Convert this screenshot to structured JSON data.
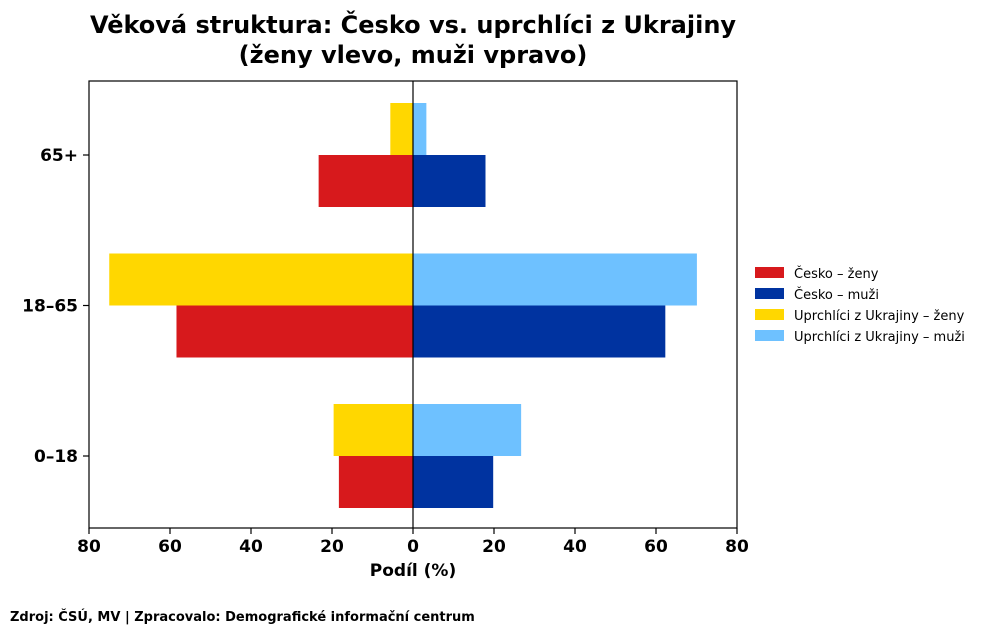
{
  "chart_data": {
    "type": "bar",
    "orientation": "horizontal",
    "title_line1": "Věková struktura: Česko vs. uprchlíci z Ukrajiny",
    "title_line2": "(ženy vlevo, muži vpravo)",
    "xlabel": "Podíl (%)",
    "ylabel": "",
    "categories": [
      "0–18",
      "18–65",
      "65+"
    ],
    "xlim": [
      -80,
      80
    ],
    "x_ticks": [
      -80,
      -60,
      -40,
      -20,
      0,
      20,
      40,
      60,
      80
    ],
    "x_tick_labels": [
      "80",
      "60",
      "40",
      "20",
      "0",
      "20",
      "40",
      "60",
      "80"
    ],
    "series": [
      {
        "name": "Česko – ženy",
        "color": "#d7191c",
        "values": [
          -18.3,
          -58.4,
          -23.3
        ],
        "slot": "lower"
      },
      {
        "name": "Česko – muži",
        "color": "#0033a0",
        "values": [
          19.8,
          62.3,
          17.9
        ],
        "slot": "lower"
      },
      {
        "name": "Uprchlíci z Ukrajiny – ženy",
        "color": "#ffd700",
        "values": [
          -19.6,
          -75.0,
          -5.6
        ],
        "slot": "upper"
      },
      {
        "name": "Uprchlíci z Ukrajiny – muži",
        "color": "#6ec1ff",
        "values": [
          26.7,
          70.1,
          3.3
        ],
        "slot": "upper"
      }
    ],
    "legend_position": "right",
    "grid": false
  },
  "footer": {
    "source": "Zdroj: ČSÚ, MV | Zpracovalo: Demografické informační centrum"
  }
}
